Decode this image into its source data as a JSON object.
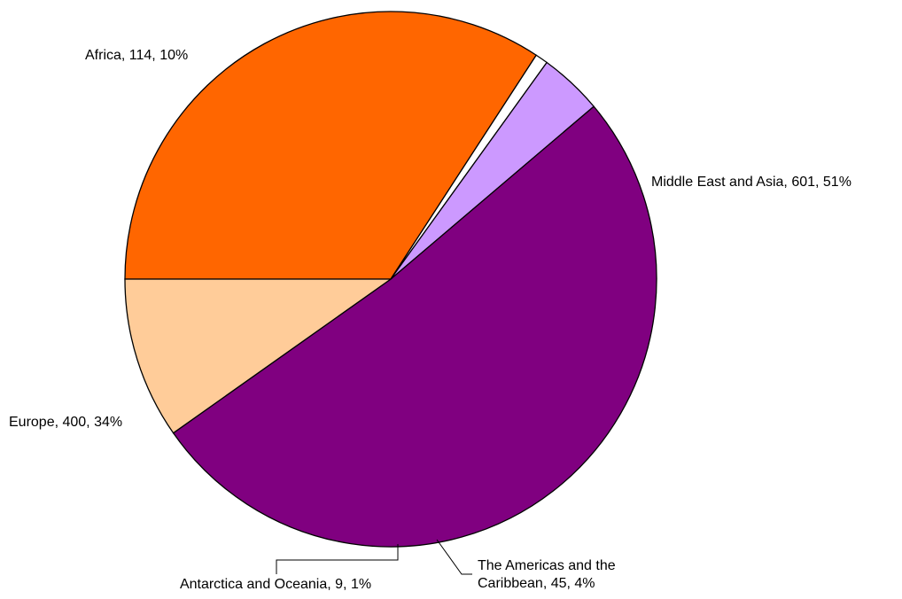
{
  "chart_data": {
    "type": "pie",
    "title": "",
    "start_angle_deg": -180,
    "direction": "counterclockwise",
    "slices": [
      {
        "name": "Europe",
        "value": 400,
        "percent": 34,
        "label": "Europe, 400, 34%",
        "color": "#FF6600"
      },
      {
        "name": "Antarctica and Oceania",
        "value": 9,
        "percent": 1,
        "label": "Antarctica and Oceania, 9, 1%",
        "color": "#FFFFFF"
      },
      {
        "name": "The Americas and the Caribbean",
        "value": 45,
        "percent": 4,
        "label_lines": [
          "The Americas and the",
          "Caribbean, 45, 4%"
        ],
        "color": "#CC99FF"
      },
      {
        "name": "Middle East and Asia",
        "value": 601,
        "percent": 51,
        "label": "Middle East and Asia, 601, 51%",
        "color": "#800080"
      },
      {
        "name": "Africa",
        "value": 114,
        "percent": 10,
        "label": "Africa, 114, 10%",
        "color": "#FFCC99"
      }
    ]
  }
}
